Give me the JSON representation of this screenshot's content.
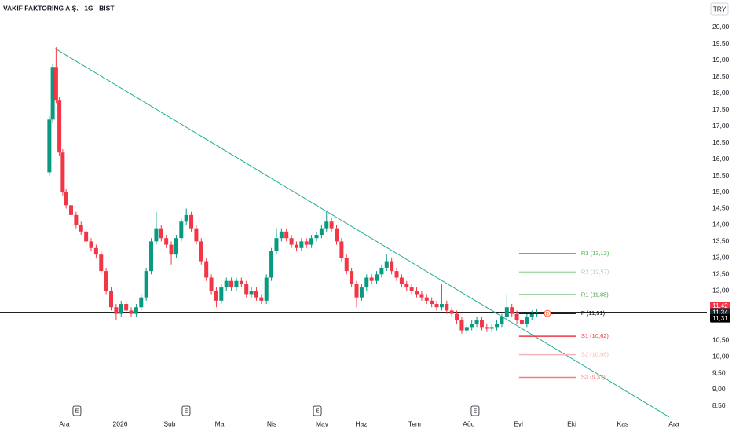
{
  "chart_data": {
    "type": "candlestick",
    "title": "VAKIF FAKTORİNG A.Ş. - 1G - BIST",
    "currency": "TRY",
    "up_color": "#089981",
    "down_color": "#f23645",
    "xlim": [
      -38.57,
      384.8
    ],
    "ylim": [
      7.95,
      20.31
    ],
    "xticks": [
      {
        "value": 0,
        "label": "Ara"
      },
      {
        "value": 33.4,
        "label": "2026"
      },
      {
        "value": 63,
        "label": "Şub"
      },
      {
        "value": 93.6,
        "label": "Mar"
      },
      {
        "value": 124.2,
        "label": "Nis"
      },
      {
        "value": 154.3,
        "label": "May"
      },
      {
        "value": 177.8,
        "label": "Haz"
      },
      {
        "value": 209.8,
        "label": "Tem"
      },
      {
        "value": 242.2,
        "label": "Ağu"
      },
      {
        "value": 271.9,
        "label": "Eyl"
      },
      {
        "value": 303.9,
        "label": "Eki"
      },
      {
        "value": 334.4,
        "label": "Kas"
      },
      {
        "value": 365,
        "label": "Ara"
      }
    ],
    "yticks": [
      {
        "value": 8.5,
        "label": "8,50"
      },
      {
        "value": 9,
        "label": "9,00"
      },
      {
        "value": 9.5,
        "label": "9,50"
      },
      {
        "value": 10,
        "label": "10,00"
      },
      {
        "value": 10.5,
        "label": "10,50"
      },
      {
        "value": 12,
        "label": "12,00"
      },
      {
        "value": 12.5,
        "label": "12,50"
      },
      {
        "value": 13,
        "label": "13,00"
      },
      {
        "value": 13.5,
        "label": "13,50"
      },
      {
        "value": 14,
        "label": "14,00"
      },
      {
        "value": 14.5,
        "label": "14,50"
      },
      {
        "value": 15,
        "label": "15,00"
      },
      {
        "value": 15.5,
        "label": "15,50"
      },
      {
        "value": 16,
        "label": "16,00"
      },
      {
        "value": 16.5,
        "label": "16,50"
      },
      {
        "value": 17,
        "label": "17,00"
      },
      {
        "value": 17.5,
        "label": "17,50"
      },
      {
        "value": 18,
        "label": "18,00"
      },
      {
        "value": 18.5,
        "label": "18,50"
      },
      {
        "value": 19,
        "label": "19,00"
      },
      {
        "value": 19.5,
        "label": "19,50"
      },
      {
        "value": 20,
        "label": "20,00"
      }
    ],
    "x": [
      -9,
      -7,
      -5,
      -3,
      -1,
      1,
      4,
      7,
      10,
      13,
      16,
      19,
      22,
      25,
      28,
      31,
      34,
      37,
      40,
      43,
      46,
      49,
      52,
      55,
      58,
      61,
      64,
      67,
      70,
      73,
      76,
      79,
      82,
      85,
      88,
      91,
      94,
      97,
      100,
      103,
      106,
      109,
      112,
      115,
      118,
      121,
      124,
      127,
      130,
      133,
      136,
      139,
      142,
      145,
      148,
      151,
      154,
      157,
      160,
      163,
      166,
      169,
      172,
      175,
      178,
      181,
      184,
      187,
      190,
      193,
      196,
      199,
      202,
      205,
      208,
      211,
      214,
      217,
      220,
      223,
      226,
      229,
      232,
      235,
      238,
      241,
      244,
      247,
      250,
      253,
      256,
      259,
      262,
      265,
      268,
      271,
      274,
      277,
      280,
      283
    ],
    "open": [
      15.6,
      17.2,
      18.8,
      17.8,
      16.2,
      15.0,
      14.6,
      14.3,
      14.0,
      13.8,
      13.5,
      13.3,
      13.1,
      12.6,
      12.0,
      11.5,
      11.3,
      11.6,
      11.4,
      11.3,
      11.5,
      11.8,
      12.6,
      13.5,
      13.9,
      13.6,
      13.4,
      13.1,
      13.6,
      14.1,
      14.3,
      13.9,
      13.5,
      12.9,
      12.4,
      12.0,
      11.7,
      12.1,
      12.3,
      12.1,
      12.3,
      12.2,
      11.9,
      12.0,
      11.8,
      11.7,
      12.4,
      13.2,
      13.6,
      13.8,
      13.6,
      13.4,
      13.3,
      13.5,
      13.4,
      13.6,
      13.7,
      13.9,
      14.1,
      13.9,
      13.5,
      13.0,
      12.6,
      12.2,
      11.8,
      12.1,
      12.4,
      12.3,
      12.5,
      12.7,
      12.9,
      12.6,
      12.4,
      12.2,
      12.1,
      12.0,
      11.9,
      11.8,
      11.7,
      11.6,
      11.5,
      11.6,
      11.4,
      11.3,
      11.1,
      10.8,
      10.9,
      11.0,
      11.1,
      10.9,
      10.85,
      10.9,
      11.0,
      11.2,
      11.5,
      11.3,
      11.1,
      11.0,
      11.2,
      11.3
    ],
    "high": [
      17.3,
      18.9,
      19.4,
      17.9,
      16.3,
      15.1,
      14.7,
      14.4,
      14.1,
      13.9,
      13.6,
      13.4,
      13.2,
      12.7,
      12.1,
      11.6,
      11.7,
      11.7,
      11.5,
      11.6,
      11.9,
      12.7,
      13.6,
      14.4,
      14.0,
      13.7,
      13.5,
      13.7,
      14.2,
      14.5,
      14.4,
      14.0,
      13.6,
      13.0,
      12.5,
      12.1,
      12.2,
      12.4,
      12.4,
      12.4,
      12.4,
      12.3,
      12.1,
      12.1,
      11.9,
      12.5,
      13.3,
      13.9,
      13.9,
      13.9,
      13.7,
      13.5,
      13.6,
      13.6,
      13.7,
      13.8,
      14.0,
      14.4,
      14.2,
      14.0,
      13.6,
      13.1,
      12.7,
      12.3,
      12.2,
      12.5,
      12.5,
      12.6,
      12.8,
      13.1,
      13.0,
      12.7,
      12.5,
      12.3,
      12.2,
      12.1,
      12.0,
      11.9,
      11.8,
      11.7,
      12.2,
      11.7,
      11.5,
      11.4,
      11.2,
      11.0,
      11.1,
      11.2,
      11.2,
      11.0,
      11.0,
      11.1,
      11.3,
      11.9,
      11.6,
      11.4,
      11.2,
      11.3,
      11.4,
      11.45
    ],
    "low": [
      15.5,
      17.1,
      17.7,
      16.1,
      14.9,
      14.5,
      14.2,
      13.9,
      13.7,
      13.4,
      13.2,
      13.0,
      12.5,
      11.9,
      11.4,
      11.1,
      11.2,
      11.3,
      11.2,
      11.2,
      11.4,
      11.7,
      12.5,
      13.4,
      13.5,
      13.3,
      12.8,
      13.0,
      13.5,
      14.0,
      13.8,
      13.4,
      12.8,
      12.3,
      11.9,
      11.5,
      11.6,
      12.0,
      12.0,
      12.0,
      12.1,
      11.8,
      11.8,
      11.7,
      11.6,
      11.6,
      12.3,
      13.1,
      13.5,
      13.5,
      13.3,
      13.2,
      13.2,
      13.3,
      13.3,
      13.5,
      13.6,
      13.8,
      13.8,
      13.4,
      12.9,
      12.5,
      12.1,
      11.5,
      11.7,
      12.0,
      12.2,
      12.2,
      12.4,
      12.6,
      12.5,
      12.3,
      12.1,
      12.0,
      11.9,
      11.8,
      11.7,
      11.6,
      11.5,
      11.4,
      11.4,
      11.3,
      11.2,
      11.0,
      10.7,
      10.7,
      10.8,
      10.9,
      10.8,
      10.75,
      10.75,
      10.8,
      10.9,
      11.1,
      11.2,
      11.0,
      10.9,
      10.9,
      11.1,
      11.2
    ],
    "close": [
      17.2,
      18.8,
      17.8,
      16.2,
      15.0,
      14.6,
      14.3,
      14.0,
      13.8,
      13.5,
      13.3,
      13.1,
      12.6,
      12.0,
      11.5,
      11.3,
      11.6,
      11.4,
      11.3,
      11.5,
      11.8,
      12.6,
      13.5,
      13.9,
      13.6,
      13.4,
      13.1,
      13.6,
      14.1,
      14.3,
      13.9,
      13.5,
      12.9,
      12.4,
      12.0,
      11.7,
      12.1,
      12.3,
      12.1,
      12.3,
      12.2,
      11.9,
      12.0,
      11.8,
      11.7,
      12.4,
      13.2,
      13.6,
      13.8,
      13.6,
      13.4,
      13.3,
      13.5,
      13.4,
      13.6,
      13.7,
      13.9,
      14.1,
      13.9,
      13.5,
      13.0,
      12.6,
      12.2,
      11.8,
      12.1,
      12.4,
      12.3,
      12.5,
      12.7,
      12.9,
      12.6,
      12.4,
      12.2,
      12.1,
      12.0,
      11.9,
      11.8,
      11.7,
      11.6,
      11.5,
      11.6,
      11.4,
      11.3,
      11.1,
      10.8,
      10.9,
      11.0,
      11.1,
      10.9,
      10.85,
      10.9,
      11.0,
      11.2,
      11.5,
      11.3,
      11.1,
      11.0,
      11.2,
      11.3,
      11.34
    ],
    "trendline": {
      "color": "#22ab94",
      "x": [
        -5.6,
        362.2
      ],
      "y": [
        19.36,
        8.17
      ]
    },
    "pivots": {
      "x_range": [
        272.3,
        306.2
      ],
      "levels": [
        {
          "value": 13.13,
          "label": "R3 (13,13)",
          "color": "#4caf50"
        },
        {
          "value": 12.57,
          "label": "R2 (12,57)",
          "color": "#a5d6a7"
        },
        {
          "value": 11.88,
          "label": "R1 (11,88)",
          "color": "#43a047"
        },
        {
          "value": 11.31,
          "label": "P (11,31)",
          "color": "#000000"
        },
        {
          "value": 10.62,
          "label": "S1 (10,62)",
          "color": "#f23645"
        },
        {
          "value": 10.06,
          "label": "S2 (10,06)",
          "color": "#f7b5b9"
        },
        {
          "value": 9.37,
          "label": "S3 (9,37)",
          "color": "#f77c80"
        }
      ]
    },
    "dividend": {
      "x": 289.3,
      "value": 11.31,
      "label": "D",
      "color": "#ff5d3b"
    },
    "events": [
      {
        "x": 7.5,
        "label": "E"
      },
      {
        "x": 72.9,
        "label": "E"
      },
      {
        "x": 151.5,
        "label": "E"
      },
      {
        "x": 246,
        "label": "E"
      }
    ],
    "price_labels": [
      {
        "value": 11.42,
        "label": "11,42",
        "color": "#f23645",
        "line": false
      },
      {
        "value": 11.34,
        "label": "11,34",
        "color": "#1e2a38",
        "line": true
      },
      {
        "value": 11.31,
        "label": "11,31",
        "color": "#000000",
        "line": false
      }
    ]
  }
}
